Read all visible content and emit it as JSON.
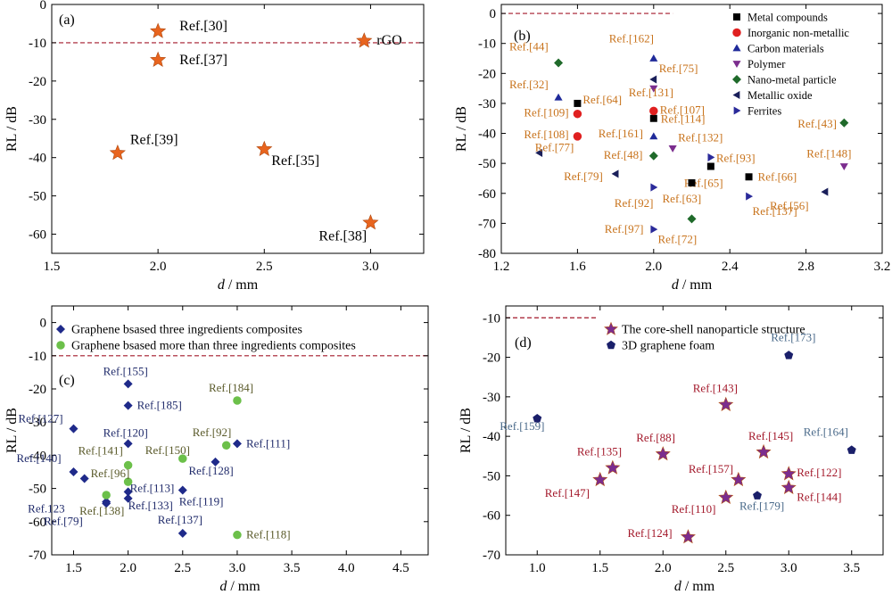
{
  "chart_data": [
    {
      "panel": "(a)",
      "type": "scatter",
      "xlabel": "d / mm",
      "ylabel": "RL / dB",
      "xlim": [
        1.5,
        3.25
      ],
      "ylim": [
        -65,
        0
      ],
      "xticks": [
        "1.5",
        "2.0",
        "2.5",
        "3.0"
      ],
      "yticks": [
        "0",
        "-10",
        "-20",
        "-30",
        "-40",
        "-50",
        "-60"
      ],
      "ref_line": -10,
      "series": [
        {
          "marker": "star",
          "color": "#e8641e",
          "points": [
            {
              "x": 2.0,
              "y": -7,
              "label": "Ref.[30]"
            },
            {
              "x": 2.0,
              "y": -14.5,
              "label": "Ref.[37]"
            },
            {
              "x": 2.97,
              "y": -9.5,
              "label": "rGO"
            },
            {
              "x": 1.81,
              "y": -38.8,
              "label": "Ref.[39]"
            },
            {
              "x": 2.5,
              "y": -37.8,
              "label": "Ref.[35]"
            },
            {
              "x": 3.0,
              "y": -57,
              "label": "Ref.[38]"
            }
          ]
        }
      ]
    },
    {
      "panel": "(b)",
      "type": "scatter",
      "xlabel": "d / mm",
      "ylabel": "RL / dB",
      "xlim": [
        1.2,
        3.2
      ],
      "ylim": [
        -80,
        3
      ],
      "xticks": [
        "1.2",
        "1.6",
        "2.0",
        "2.4",
        "2.8",
        "3.2"
      ],
      "yticks": [
        "0",
        "-10",
        "-20",
        "-30",
        "-40",
        "-50",
        "-60",
        "-70",
        "-80"
      ],
      "ref_line": 0,
      "legend_position": "top-right",
      "series": [
        {
          "name": "Metal compounds",
          "marker": "square",
          "color": "#000000",
          "points": [
            {
              "x": 1.6,
              "y": -30,
              "label": "Ref.[64]"
            },
            {
              "x": 2.0,
              "y": -35,
              "label": "Ref.[114]"
            },
            {
              "x": 2.3,
              "y": -51,
              "label": "Ref.[65]"
            },
            {
              "x": 2.2,
              "y": -56.5,
              "label": "Ref.[63]"
            },
            {
              "x": 2.5,
              "y": -54.5,
              "label": "Ref.[66]"
            }
          ]
        },
        {
          "name": "Inorganic non-metallic",
          "marker": "circle",
          "color": "#e02020",
          "points": [
            {
              "x": 1.6,
              "y": -33.5,
              "label": "Ref.[109]"
            },
            {
              "x": 1.6,
              "y": -41,
              "label": "Ref.[108]"
            },
            {
              "x": 2.0,
              "y": -32.5,
              "label": "Ref.[107]"
            }
          ]
        },
        {
          "name": "Carbon materials",
          "marker": "triangle-up",
          "color": "#1f2a9a",
          "points": [
            {
              "x": 1.5,
              "y": -28,
              "label": "Ref.[32]"
            },
            {
              "x": 2.0,
              "y": -15,
              "label": "Ref.[162]"
            },
            {
              "x": 2.0,
              "y": -41,
              "label": "Ref.[161]"
            }
          ]
        },
        {
          "name": "Polymer",
          "marker": "triangle-down",
          "color": "#7b2d8e",
          "points": [
            {
              "x": 2.0,
              "y": -25,
              "label": "Ref.[131]"
            },
            {
              "x": 2.1,
              "y": -45,
              "label": "Ref.[132]"
            },
            {
              "x": 3.0,
              "y": -51,
              "label": "Ref.[148]"
            }
          ]
        },
        {
          "name": "Nano-metal particle",
          "marker": "diamond",
          "color": "#1f6a2a",
          "points": [
            {
              "x": 1.5,
              "y": -16.5,
              "label": "Ref.[44]"
            },
            {
              "x": 2.0,
              "y": -47.5,
              "label": "Ref.[48]"
            },
            {
              "x": 2.2,
              "y": -68.5,
              "label": "Ref.[72]"
            },
            {
              "x": 3.0,
              "y": -36.5,
              "label": "Ref.[43]"
            }
          ]
        },
        {
          "name": "Metallic oxide",
          "marker": "triangle-left",
          "color": "#1a1f5a",
          "points": [
            {
              "x": 2.0,
              "y": -22,
              "label": "Ref.[75]"
            },
            {
              "x": 1.4,
              "y": -46.5,
              "label": "Ref.[77]"
            },
            {
              "x": 1.8,
              "y": -53.5,
              "label": "Ref.[79]"
            },
            {
              "x": 2.9,
              "y": -59.5,
              "label": "Ref.[56]"
            }
          ]
        },
        {
          "name": "Ferrites",
          "marker": "triangle-right",
          "color": "#2a2a9a",
          "points": [
            {
              "x": 2.3,
              "y": -48,
              "label": "Ref.[93]"
            },
            {
              "x": 2.0,
              "y": -58,
              "label": "Ref.[92]"
            },
            {
              "x": 2.5,
              "y": -61,
              "label": "Ref.[137]"
            },
            {
              "x": 2.0,
              "y": -72,
              "label": "Ref.[97]"
            }
          ]
        }
      ]
    },
    {
      "panel": "(c)",
      "type": "scatter",
      "xlabel": "d / mm",
      "ylabel": "RL / dB",
      "xlim": [
        1.3,
        4.75
      ],
      "ylim": [
        -70,
        5
      ],
      "xticks": [
        "1.5",
        "2.0",
        "2.5",
        "3.0",
        "3.5",
        "4.0",
        "4.5"
      ],
      "yticks": [
        "0",
        "-10",
        "-20",
        "-30",
        "-40",
        "-50",
        "-60",
        "-70"
      ],
      "ref_line": -10,
      "legend_position": "top-left",
      "series": [
        {
          "name": "Graphene bsased three ingredients composites",
          "marker": "diamond",
          "color": "#1f2a8a",
          "points": [
            {
              "x": 2.0,
              "y": -18.5,
              "label": "Ref.[155]"
            },
            {
              "x": 2.0,
              "y": -25,
              "label": "Ref.[185]"
            },
            {
              "x": 1.5,
              "y": -32,
              "label": "Ref.[127]"
            },
            {
              "x": 2.0,
              "y": -36.5,
              "label": "Ref.[120]"
            },
            {
              "x": 3.0,
              "y": -36.5,
              "label": "Ref.[111]"
            },
            {
              "x": 2.8,
              "y": -42,
              "label": "Ref.[128]"
            },
            {
              "x": 1.5,
              "y": -45,
              "label": "Ref.[140]"
            },
            {
              "x": 1.6,
              "y": -47,
              "label": ""
            },
            {
              "x": 2.0,
              "y": -51,
              "label": "Ref.[113]"
            },
            {
              "x": 2.0,
              "y": -53,
              "label": "Ref.[133]"
            },
            {
              "x": 1.8,
              "y": -54,
              "label": "Ref.123"
            },
            {
              "x": 2.5,
              "y": -50.5,
              "label": "Ref.[119]"
            },
            {
              "x": 2.5,
              "y": -63.5,
              "label": "Ref.[137]"
            },
            {
              "x": 1.8,
              "y": -54.5,
              "label": "Ref.[79]"
            }
          ]
        },
        {
          "name": "Graphene bsased more than three ingredients composites",
          "marker": "circle",
          "color": "#6cc04a",
          "points": [
            {
              "x": 3.0,
              "y": -23.5,
              "label": "Ref.[184]"
            },
            {
              "x": 2.9,
              "y": -37,
              "label": "Ref.[92]"
            },
            {
              "x": 2.5,
              "y": -41,
              "label": "Ref.[150]"
            },
            {
              "x": 2.0,
              "y": -43,
              "label": "Ref.[141]"
            },
            {
              "x": 2.0,
              "y": -48,
              "label": "Ref.[96]"
            },
            {
              "x": 1.8,
              "y": -52,
              "label": "Ref.[138]"
            },
            {
              "x": 3.0,
              "y": -64,
              "label": "Ref.[118]"
            }
          ]
        }
      ]
    },
    {
      "panel": "(d)",
      "type": "scatter",
      "xlabel": "d / mm",
      "ylabel": "RL / dB",
      "xlim": [
        0.75,
        3.75
      ],
      "ylim": [
        -70,
        -7
      ],
      "xticks": [
        "1.0",
        "1.5",
        "2.0",
        "2.5",
        "3.0",
        "3.5"
      ],
      "yticks": [
        "-10",
        "-20",
        "-30",
        "-40",
        "-50",
        "-60",
        "-70"
      ],
      "ref_line": -10,
      "legend_position": "top-right",
      "series": [
        {
          "name": "The core-shell nanoparticle structure",
          "marker": "star",
          "color": "#7b2d8e",
          "points": [
            {
              "x": 2.5,
              "y": -32,
              "label": "Ref.[143]"
            },
            {
              "x": 2.8,
              "y": -44,
              "label": "Ref.[145]"
            },
            {
              "x": 2.0,
              "y": -44.5,
              "label": "Ref.[88]"
            },
            {
              "x": 1.6,
              "y": -48,
              "label": "Ref.[135]"
            },
            {
              "x": 1.5,
              "y": -51,
              "label": "Ref.[147]"
            },
            {
              "x": 2.6,
              "y": -51,
              "label": "Ref.[157]"
            },
            {
              "x": 3.0,
              "y": -49.5,
              "label": "Ref.[122]"
            },
            {
              "x": 3.0,
              "y": -53,
              "label": "Ref.[144]"
            },
            {
              "x": 2.5,
              "y": -55.5,
              "label": "Ref.[110]"
            },
            {
              "x": 2.2,
              "y": -65.5,
              "label": "Ref.[124]"
            }
          ]
        },
        {
          "name": "3D graphene foam",
          "marker": "pentagon",
          "color": "#1a1f6a",
          "points": [
            {
              "x": 3.0,
              "y": -19.5,
              "label": "Ref.[173]"
            },
            {
              "x": 1.0,
              "y": -35.5,
              "label": "Ref.[159]"
            },
            {
              "x": 3.5,
              "y": -43.5,
              "label": "Ref.[164]"
            },
            {
              "x": 2.75,
              "y": -55,
              "label": "Ref.[179]"
            }
          ]
        }
      ]
    }
  ]
}
